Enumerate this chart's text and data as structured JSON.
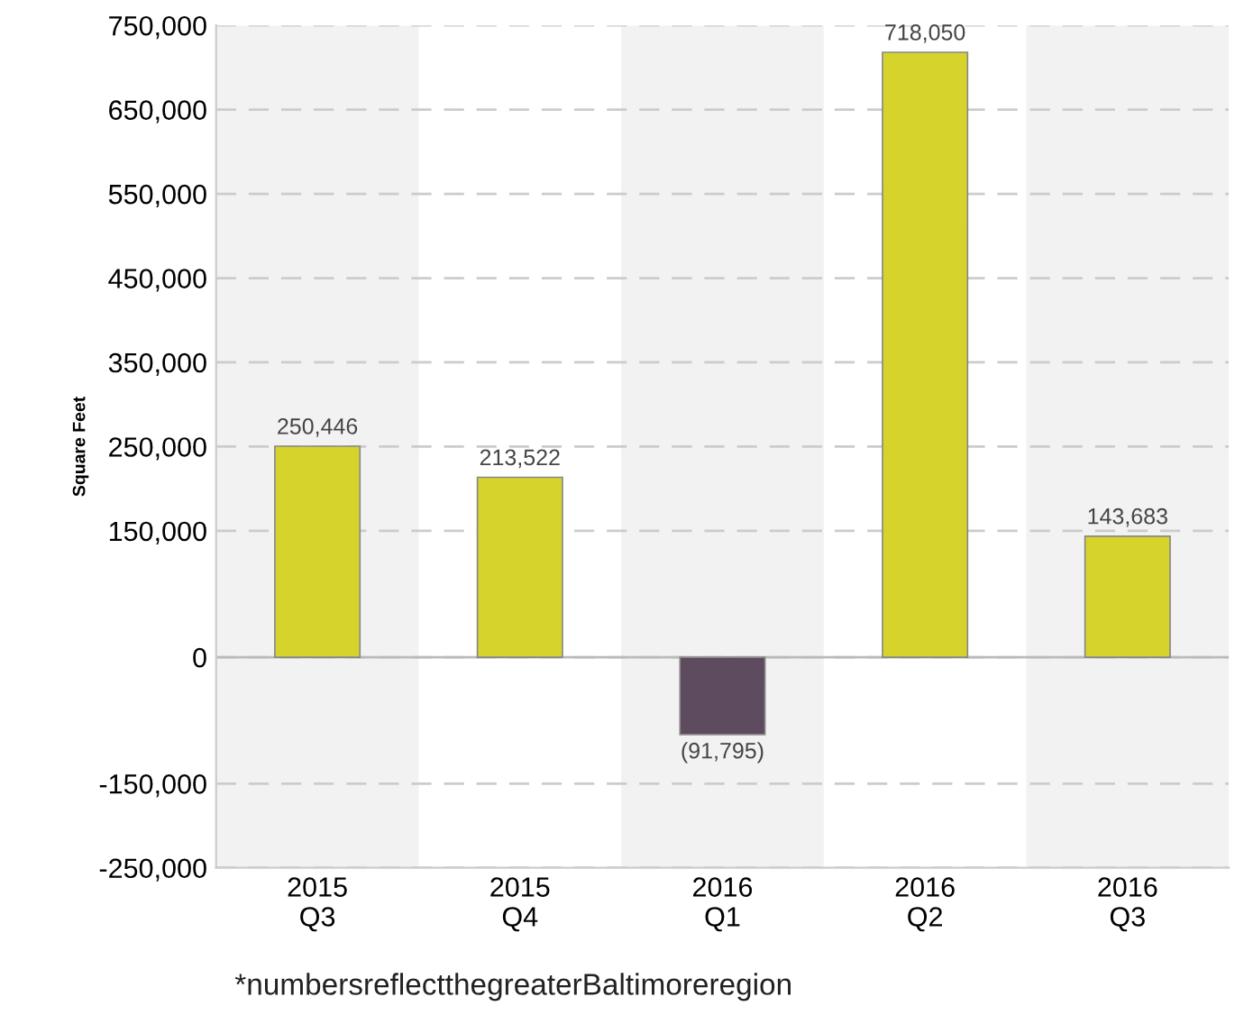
{
  "chart_data": {
    "type": "bar",
    "ylabel": "Square Feet",
    "categories": [
      "2015\nQ3",
      "2015\nQ4",
      "2016\nQ1",
      "2016\nQ2",
      "2016\nQ3"
    ],
    "values": [
      250446,
      213522,
      -91795,
      718050,
      143683
    ],
    "colors": [
      "#d6d42c",
      "#d6d42c",
      "#5f4b5f",
      "#d6d42c",
      "#d6d42c"
    ],
    "value_labels": [
      "250,446",
      "213,522",
      "(91,795)",
      "718,050",
      "143,683"
    ],
    "ylim": [
      -250000,
      750000
    ],
    "yticks": [
      {
        "value": 750000,
        "label": "750,000"
      },
      {
        "value": 650000,
        "label": "650,000"
      },
      {
        "value": 550000,
        "label": "550,000"
      },
      {
        "value": 450000,
        "label": "450,000"
      },
      {
        "value": 350000,
        "label": "350,000"
      },
      {
        "value": 250000,
        "label": "250,000"
      },
      {
        "value": 150000,
        "label": "150,000"
      },
      {
        "value": 0,
        "label": "0"
      },
      {
        "value": -150000,
        "label": "-150,000"
      },
      {
        "value": -250000,
        "label": "-250,000"
      }
    ],
    "bands": [
      {
        "axis": "x",
        "from": "2015\nQ3",
        "to": "2015\nQ3",
        "color": "#f2f2f2"
      },
      {
        "axis": "x",
        "from": "2016\nQ1",
        "to": "2016\nQ1",
        "color": "#f2f2f2"
      },
      {
        "axis": "x",
        "from": "2016\nQ3",
        "to": "2016\nQ3",
        "color": "#f2f2f2"
      }
    ],
    "grid": "y",
    "legend": false,
    "annotations": [
      "*numbersreflectthegreaterBaltimoreregion"
    ]
  }
}
